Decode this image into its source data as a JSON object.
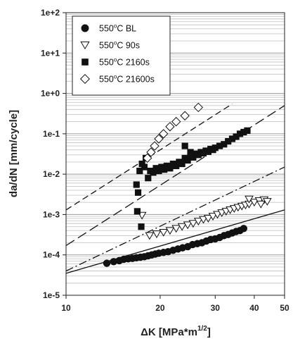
{
  "chart_data": {
    "type": "scatter",
    "xlabel": "ΔK [MPa*m1/2]",
    "xlabel_parts": {
      "base": "ΔK [MPa*m",
      "sup": "1/2",
      "end": "]"
    },
    "ylabel": "da/dN [mm/cycle]",
    "x_scale": "log",
    "y_scale": "log",
    "xlim": [
      10,
      50
    ],
    "ylim": [
      1e-05,
      100
    ],
    "x_ticks": [
      10,
      20,
      30,
      40,
      50
    ],
    "x_tick_labels": [
      "10",
      "20",
      "30",
      "40",
      "50"
    ],
    "y_ticks": [
      1e-05,
      0.0001,
      0.001,
      0.01,
      0.1,
      1,
      10,
      100
    ],
    "y_tick_labels": [
      "1e-5",
      "1e-4",
      "1e-3",
      "1e-2",
      "1e-1",
      "1e+0",
      "1e+1",
      "1e+2"
    ],
    "grid": "horizontal",
    "legend_position": "top-left",
    "series": [
      {
        "name": "550°C BL",
        "name_parts": {
          "pre": "550",
          "sup": "o",
          "post": "C BL"
        },
        "marker": "filled-circle",
        "points": [
          [
            13.5,
            6.2e-05
          ],
          [
            14.2,
            6.8e-05
          ],
          [
            14.8,
            7.2e-05
          ],
          [
            15.3,
            7.8e-05
          ],
          [
            15.8,
            8e-05
          ],
          [
            16.3,
            8.2e-05
          ],
          [
            16.8,
            8.5e-05
          ],
          [
            17.3,
            8.8e-05
          ],
          [
            17.8,
            9e-05
          ],
          [
            18.3,
            9.5e-05
          ],
          [
            18.8,
            0.0001
          ],
          [
            19.3,
            0.000105
          ],
          [
            19.8,
            0.00011
          ],
          [
            20.5,
            0.000115
          ],
          [
            21.2,
            0.00012
          ],
          [
            22,
            0.00013
          ],
          [
            22.8,
            0.00014
          ],
          [
            23.6,
            0.00015
          ],
          [
            24.5,
            0.00016
          ],
          [
            25.4,
            0.00018
          ],
          [
            26.3,
            0.00019
          ],
          [
            27.2,
            0.0002
          ],
          [
            28.1,
            0.00022
          ],
          [
            29,
            0.00024
          ],
          [
            30,
            0.00025
          ],
          [
            31,
            0.00027
          ],
          [
            32,
            0.0003
          ],
          [
            33,
            0.00032
          ],
          [
            34,
            0.00035
          ],
          [
            35,
            0.00038
          ],
          [
            36,
            0.0004
          ],
          [
            37,
            0.00045
          ]
        ]
      },
      {
        "name": "550°C 90s",
        "name_parts": {
          "pre": "550",
          "sup": "o",
          "post": "C 90s"
        },
        "marker": "open-triangle-down",
        "points": [
          [
            17.5,
            0.00095
          ],
          [
            18.5,
            0.0003
          ],
          [
            19.5,
            0.00033
          ],
          [
            20.5,
            0.00036
          ],
          [
            21.5,
            0.0004
          ],
          [
            22.5,
            0.00045
          ],
          [
            23.5,
            0.0005
          ],
          [
            24.5,
            0.00055
          ],
          [
            25.5,
            0.0006
          ],
          [
            26.5,
            0.00068
          ],
          [
            27.5,
            0.00075
          ],
          [
            28.5,
            0.0008
          ],
          [
            29.5,
            0.0009
          ],
          [
            30.5,
            0.001
          ],
          [
            31.5,
            0.0011
          ],
          [
            32.5,
            0.0012
          ],
          [
            33.5,
            0.0013
          ],
          [
            34.5,
            0.0014
          ],
          [
            35.5,
            0.0015
          ],
          [
            36.5,
            0.0016
          ],
          [
            37.5,
            0.0017
          ],
          [
            38.5,
            0.0018
          ],
          [
            40,
            0.002
          ],
          [
            41.5,
            0.0022
          ],
          [
            43,
            0.0023
          ],
          [
            44,
            0.0021
          ],
          [
            38.5,
            0.0024
          ],
          [
            42,
            0.0018
          ]
        ]
      },
      {
        "name": "550°C 2160s",
        "name_parts": {
          "pre": "550",
          "sup": "o",
          "post": "C 2160s"
        },
        "marker": "filled-square",
        "points": [
          [
            16.8,
            0.0055
          ],
          [
            16.9,
            0.0012
          ],
          [
            17.0,
            0.0035
          ],
          [
            17.2,
            0.012
          ],
          [
            17.5,
            0.018
          ],
          [
            17.8,
            0.015
          ],
          [
            18.0,
            0.025
          ],
          [
            18.3,
            0.008
          ],
          [
            18.6,
            0.012
          ],
          [
            19.0,
            0.011
          ],
          [
            19.4,
            0.014
          ],
          [
            19.8,
            0.012
          ],
          [
            20.2,
            0.015
          ],
          [
            20.6,
            0.013
          ],
          [
            21,
            0.016
          ],
          [
            21.5,
            0.014
          ],
          [
            22,
            0.018
          ],
          [
            22.5,
            0.016
          ],
          [
            23,
            0.02
          ],
          [
            23.5,
            0.018
          ],
          [
            24,
            0.025
          ],
          [
            24.5,
            0.022
          ],
          [
            25,
            0.028
          ],
          [
            25.5,
            0.026
          ],
          [
            26,
            0.032
          ],
          [
            26.5,
            0.03
          ],
          [
            27,
            0.035
          ],
          [
            27.5,
            0.033
          ],
          [
            28,
            0.038
          ],
          [
            28.5,
            0.036
          ],
          [
            29,
            0.042
          ],
          [
            29.5,
            0.04
          ],
          [
            30,
            0.045
          ],
          [
            31,
            0.05
          ],
          [
            32,
            0.055
          ],
          [
            33,
            0.065
          ],
          [
            34,
            0.075
          ],
          [
            35,
            0.085
          ],
          [
            36,
            0.1
          ],
          [
            37,
            0.11
          ],
          [
            38,
            0.12
          ],
          [
            17.4,
            0.0005
          ],
          [
            24,
            0.05
          ],
          [
            25,
            0.035
          ]
        ]
      },
      {
        "name": "550°C 21600s",
        "name_parts": {
          "pre": "550",
          "sup": "o",
          "post": "C 21600s"
        },
        "marker": "open-diamond",
        "points": [
          [
            18.2,
            0.025
          ],
          [
            18.7,
            0.035
          ],
          [
            19.2,
            0.05
          ],
          [
            19.8,
            0.075
          ],
          [
            20.5,
            0.1
          ],
          [
            21.5,
            0.15
          ],
          [
            22.5,
            0.2
          ],
          [
            24,
            0.28
          ],
          [
            26.5,
            0.45
          ]
        ]
      }
    ],
    "fit_lines": [
      {
        "style": "dashed",
        "points": [
          [
            10,
            0.0013
          ],
          [
            34,
            0.55
          ]
        ]
      },
      {
        "style": "long-dash",
        "points": [
          [
            10,
            0.00017
          ],
          [
            50,
            0.5
          ]
        ]
      },
      {
        "style": "dash-dot",
        "points": [
          [
            10,
            4e-05
          ],
          [
            50,
            0.015
          ]
        ]
      },
      {
        "style": "solid",
        "points": [
          [
            10,
            3.5e-05
          ],
          [
            50,
            0.0013
          ]
        ]
      }
    ]
  }
}
